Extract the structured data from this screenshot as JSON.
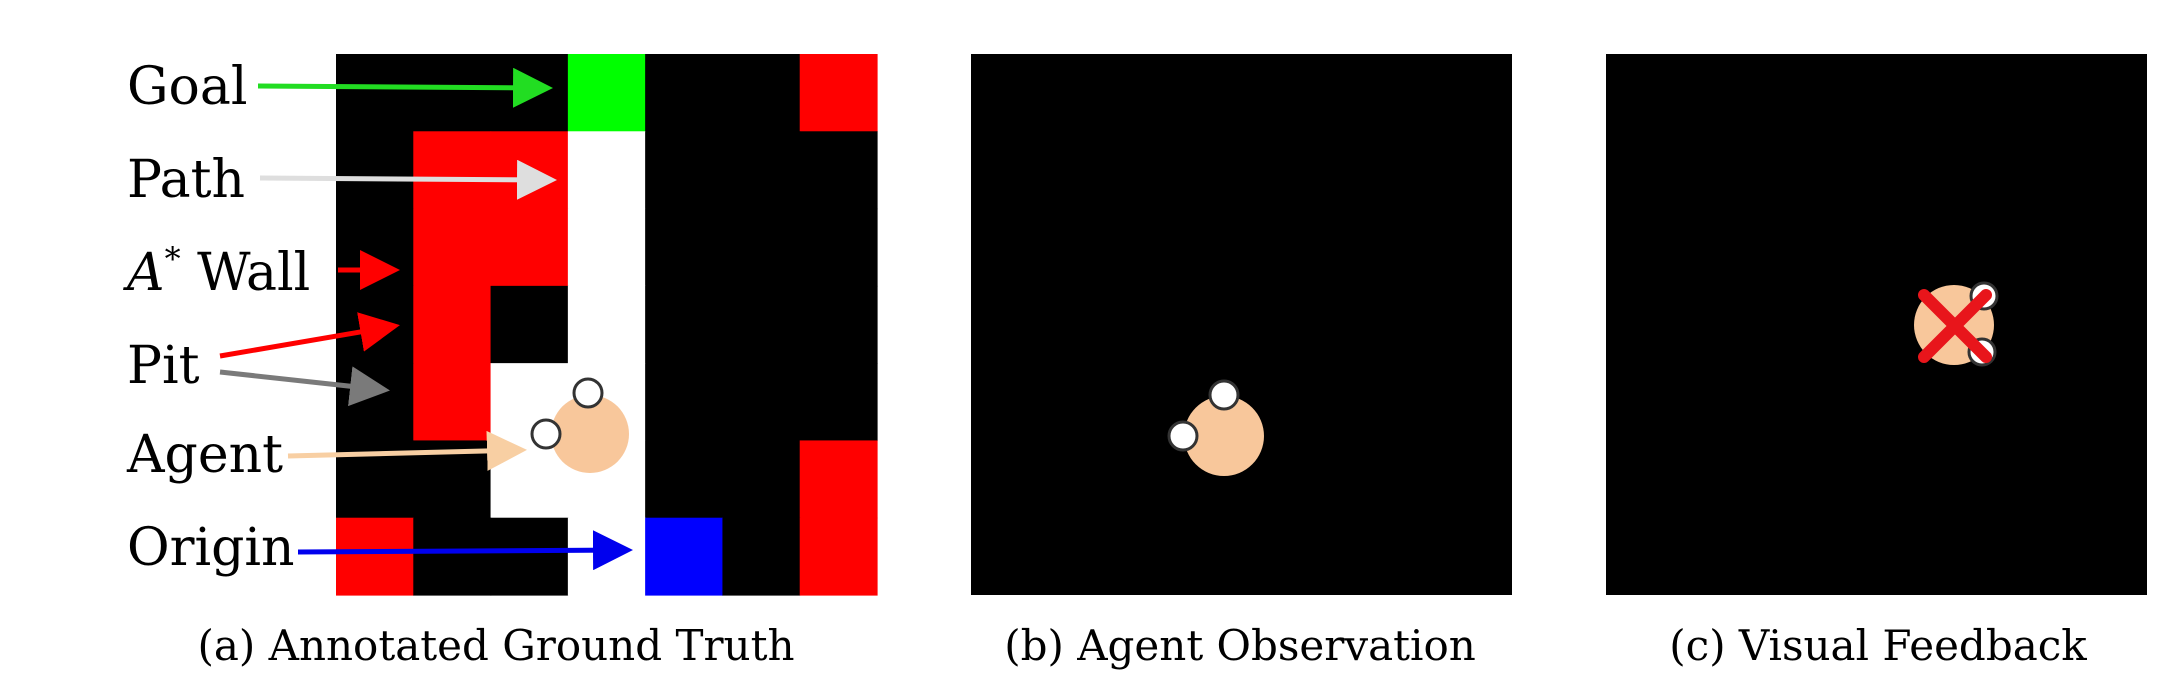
{
  "panels": {
    "a": {
      "caption": "(a) Annotated Ground Truth",
      "grid": {
        "rows": 7,
        "cols": 7,
        "cells": [
          [
            "black",
            "black",
            "black",
            "green",
            "black",
            "black",
            "red"
          ],
          [
            "black",
            "red",
            "red",
            "white",
            "black",
            "black",
            "black"
          ],
          [
            "black",
            "red",
            "red",
            "white",
            "black",
            "black",
            "black"
          ],
          [
            "black",
            "red",
            "black",
            "white",
            "black",
            "black",
            "black"
          ],
          [
            "black",
            "red",
            "white",
            "white",
            "black",
            "black",
            "black"
          ],
          [
            "black",
            "black",
            "white",
            "white",
            "black",
            "black",
            "red"
          ],
          [
            "red",
            "black",
            "black",
            "white",
            "blue",
            "black",
            "red"
          ]
        ]
      },
      "annotations": [
        {
          "label": "Goal",
          "arrow_color": "#22dd22"
        },
        {
          "label": "Path",
          "arrow_color": "#dedede"
        },
        {
          "label_italic": "A",
          "label_sup": "*",
          "label_rest": " Wall",
          "arrow_color": "#ff0000"
        },
        {
          "label": "Pit",
          "arrow_colors": [
            "#ff0000",
            "#7a7a7a"
          ]
        },
        {
          "label": "Agent",
          "arrow_color": "#f8cfa3"
        },
        {
          "label": "Origin",
          "arrow_color": "#0000ee"
        }
      ]
    },
    "b": {
      "caption": "(b) Agent Observation"
    },
    "c": {
      "caption": "(c) Visual Feedback"
    }
  },
  "colors": {
    "black": "#000000",
    "red": "#ff0000",
    "green": "#00ff00",
    "white": "#ffffff",
    "blue": "#0000ff",
    "agent": "#f8c79b",
    "feedback_x": "#e8151b"
  }
}
